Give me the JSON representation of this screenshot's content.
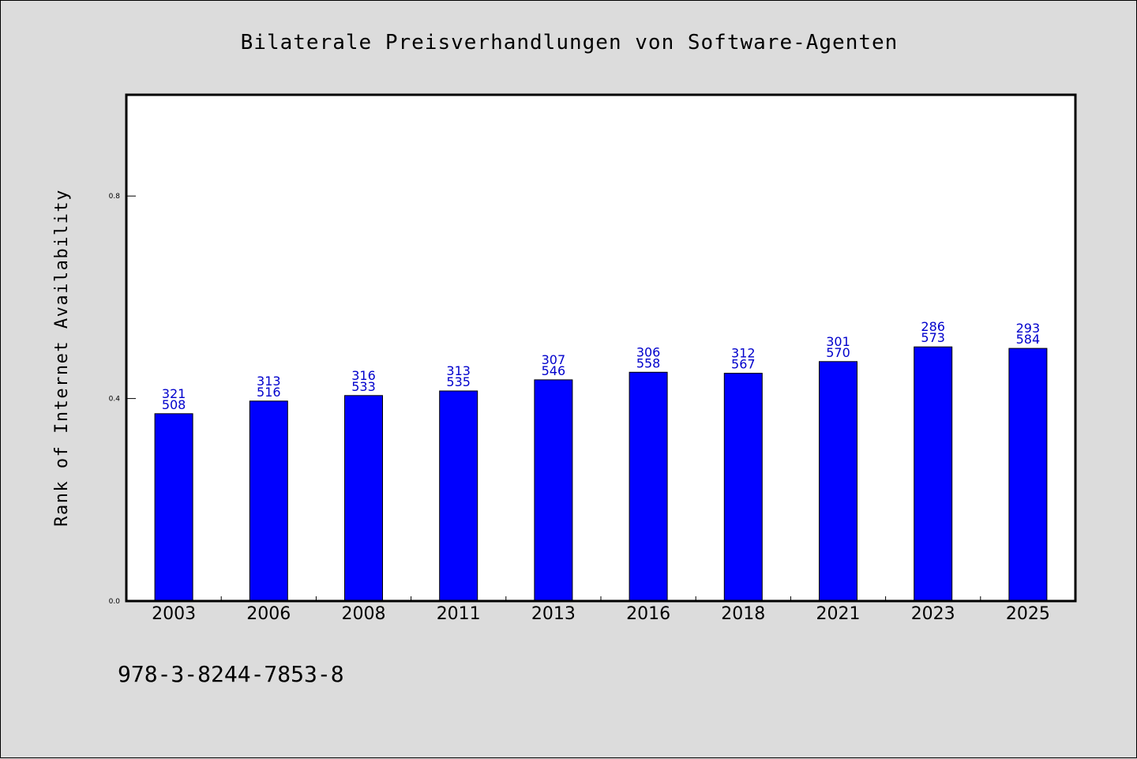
{
  "chart_data": {
    "type": "bar",
    "title": "Bilaterale Preisverhandlungen von Software-Agenten",
    "xlabel": "",
    "ylabel": "Rank of Internet Availability",
    "categories": [
      "2003",
      "2006",
      "2008",
      "2011",
      "2013",
      "2016",
      "2018",
      "2021",
      "2023",
      "2025"
    ],
    "values": [
      0.37,
      0.395,
      0.406,
      0.415,
      0.437,
      0.452,
      0.45,
      0.473,
      0.502,
      0.499
    ],
    "labels_top": [
      "321",
      "313",
      "316",
      "313",
      "307",
      "306",
      "312",
      "301",
      "286",
      "293"
    ],
    "labels_bottom": [
      "508",
      "516",
      "533",
      "535",
      "546",
      "558",
      "567",
      "570",
      "573",
      "584"
    ],
    "ylim": [
      0,
      1.0
    ],
    "yticks": [
      "0.0",
      "0.4",
      "0.8"
    ],
    "ytick_values": [
      0.0,
      0.4,
      0.8
    ],
    "grid": false,
    "bar_color": "#0000ff",
    "label_color": "#0000cc",
    "background": "#dcdcdc",
    "plot_background": "#ffffff"
  },
  "footer": {
    "isbn": "978-3-8244-7853-8"
  }
}
